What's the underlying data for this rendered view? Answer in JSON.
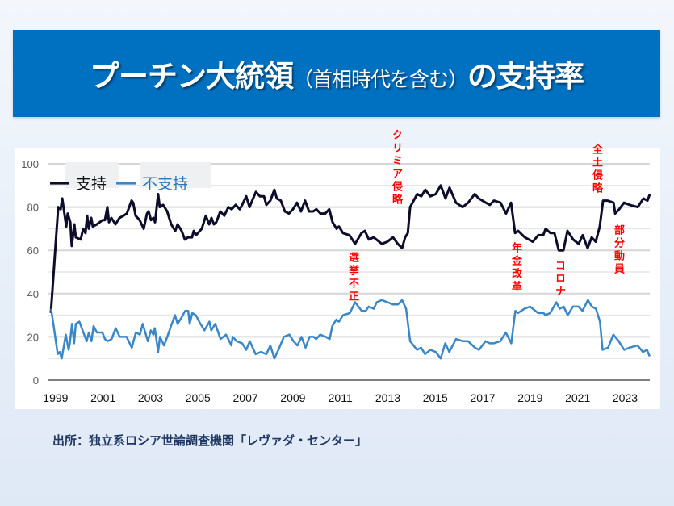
{
  "header": {
    "title_main": "プーチン大統領",
    "title_paren": "（首相時代を含む）",
    "title_end": "の支持率"
  },
  "source": "出所：独立系ロシア世論調査機関「レヴァダ・センター」",
  "chart_data": {
    "type": "line",
    "title": "プーチン大統領（首相時代を含む）の支持率",
    "xlabel": "",
    "ylabel": "",
    "xlim": [
      1999,
      2024.5
    ],
    "ylim": [
      0,
      100
    ],
    "yticks": [
      0,
      20,
      40,
      60,
      80,
      100
    ],
    "xticks": [
      "1999",
      "2001",
      "2003",
      "2005",
      "2007",
      "2009",
      "2011",
      "2013",
      "2015",
      "2017",
      "2019",
      "2021",
      "2023"
    ],
    "grid": true,
    "legend": "top-left",
    "series": [
      {
        "name": "支持",
        "color": "#0d0d2b",
        "points": [
          [
            1999.1,
            31
          ],
          [
            1999.24,
            53
          ],
          [
            1999.41,
            80
          ],
          [
            1999.51,
            79
          ],
          [
            1999.58,
            84
          ],
          [
            1999.75,
            71
          ],
          [
            1999.81,
            77
          ],
          [
            1999.92,
            73
          ],
          [
            1999.98,
            62
          ],
          [
            2000.09,
            72
          ],
          [
            2000.15,
            66
          ],
          [
            2000.36,
            65
          ],
          [
            2000.46,
            70
          ],
          [
            2000.56,
            68
          ],
          [
            2000.63,
            76
          ],
          [
            2000.7,
            70
          ],
          [
            2000.8,
            75
          ],
          [
            2000.87,
            71
          ],
          [
            2001.04,
            72
          ],
          [
            2001.28,
            74
          ],
          [
            2001.38,
            74
          ],
          [
            2001.48,
            80
          ],
          [
            2001.55,
            73
          ],
          [
            2001.65,
            75
          ],
          [
            2001.82,
            72
          ],
          [
            2001.99,
            75
          ],
          [
            2002.16,
            76
          ],
          [
            2002.3,
            77
          ],
          [
            2002.5,
            83
          ],
          [
            2002.57,
            82
          ],
          [
            2002.67,
            76
          ],
          [
            2002.84,
            74
          ],
          [
            2003.01,
            70
          ],
          [
            2003.15,
            77
          ],
          [
            2003.22,
            78
          ],
          [
            2003.32,
            74
          ],
          [
            2003.42,
            75
          ],
          [
            2003.49,
            73
          ],
          [
            2003.62,
            86
          ],
          [
            2003.69,
            80
          ],
          [
            2003.83,
            81
          ],
          [
            2004.0,
            78
          ],
          [
            2004.17,
            72
          ],
          [
            2004.34,
            69
          ],
          [
            2004.44,
            72
          ],
          [
            2004.61,
            69
          ],
          [
            2004.75,
            65
          ],
          [
            2004.88,
            66
          ],
          [
            2005.05,
            66
          ],
          [
            2005.12,
            69
          ],
          [
            2005.22,
            67
          ],
          [
            2005.46,
            70
          ],
          [
            2005.63,
            76
          ],
          [
            2005.77,
            72
          ],
          [
            2005.87,
            75
          ],
          [
            2005.97,
            72
          ],
          [
            2006.07,
            73
          ],
          [
            2006.24,
            78
          ],
          [
            2006.41,
            76
          ],
          [
            2006.58,
            80
          ],
          [
            2006.72,
            79
          ],
          [
            2006.89,
            81
          ],
          [
            2007.06,
            79
          ],
          [
            2007.16,
            81
          ],
          [
            2007.33,
            85
          ],
          [
            2007.47,
            80
          ],
          [
            2007.74,
            87
          ],
          [
            2007.91,
            85
          ],
          [
            2008.08,
            85
          ],
          [
            2008.18,
            81
          ],
          [
            2008.35,
            83
          ],
          [
            2008.52,
            88
          ],
          [
            2008.62,
            84
          ],
          [
            2008.79,
            83
          ],
          [
            2008.96,
            78
          ],
          [
            2009.13,
            77
          ],
          [
            2009.3,
            79
          ],
          [
            2009.47,
            82
          ],
          [
            2009.64,
            78
          ],
          [
            2009.81,
            83
          ],
          [
            2009.98,
            78
          ],
          [
            2010.15,
            78
          ],
          [
            2010.29,
            79
          ],
          [
            2010.46,
            77
          ],
          [
            2010.66,
            77
          ],
          [
            2010.83,
            79
          ],
          [
            2010.97,
            73
          ],
          [
            2011.14,
            70
          ],
          [
            2011.24,
            71
          ],
          [
            2011.41,
            68
          ],
          [
            2011.68,
            67
          ],
          [
            2011.92,
            63
          ],
          [
            2012.19,
            68
          ],
          [
            2012.33,
            69
          ],
          [
            2012.5,
            65
          ],
          [
            2012.7,
            66
          ],
          [
            2013.05,
            63
          ],
          [
            2013.28,
            64
          ],
          [
            2013.52,
            66
          ],
          [
            2013.72,
            63
          ],
          [
            2013.9,
            61
          ],
          [
            2014.03,
            66
          ],
          [
            2014.14,
            68
          ],
          [
            2014.24,
            80
          ],
          [
            2014.54,
            86
          ],
          [
            2014.71,
            85
          ],
          [
            2014.88,
            88
          ],
          [
            2015.09,
            85
          ],
          [
            2015.32,
            86
          ],
          [
            2015.53,
            90
          ],
          [
            2015.73,
            84
          ],
          [
            2015.9,
            89
          ],
          [
            2016.17,
            82
          ],
          [
            2016.45,
            80
          ],
          [
            2016.68,
            82
          ],
          [
            2016.96,
            86
          ],
          [
            2017.13,
            84
          ],
          [
            2017.43,
            82
          ],
          [
            2017.6,
            81
          ],
          [
            2017.77,
            83
          ],
          [
            2018.05,
            82
          ],
          [
            2018.28,
            77
          ],
          [
            2018.49,
            82
          ],
          [
            2018.66,
            68
          ],
          [
            2018.79,
            69
          ],
          [
            2019.07,
            66
          ],
          [
            2019.41,
            64
          ],
          [
            2019.64,
            67
          ],
          [
            2019.85,
            67
          ],
          [
            2019.95,
            70
          ],
          [
            2020.15,
            68
          ],
          [
            2020.32,
            68
          ],
          [
            2020.5,
            60
          ],
          [
            2020.7,
            60
          ],
          [
            2020.87,
            69
          ],
          [
            2021.11,
            65
          ],
          [
            2021.34,
            63
          ],
          [
            2021.51,
            67
          ],
          [
            2021.72,
            61
          ],
          [
            2021.89,
            66
          ],
          [
            2022.06,
            64
          ],
          [
            2022.23,
            71
          ],
          [
            2022.37,
            83
          ],
          [
            2022.57,
            83
          ],
          [
            2022.81,
            82
          ],
          [
            2022.88,
            77
          ],
          [
            2023.05,
            79
          ],
          [
            2023.25,
            82
          ],
          [
            2023.49,
            81
          ],
          [
            2023.83,
            80
          ],
          [
            2024.07,
            84
          ],
          [
            2024.24,
            83
          ],
          [
            2024.34,
            86
          ]
        ]
      },
      {
        "name": "不支持",
        "color": "#3a87c8",
        "points": [
          [
            1999.11,
            33
          ],
          [
            1999.22,
            25
          ],
          [
            1999.39,
            12
          ],
          [
            1999.47,
            13
          ],
          [
            1999.56,
            10
          ],
          [
            1999.73,
            21
          ],
          [
            1999.85,
            14
          ],
          [
            1999.9,
            17
          ],
          [
            1999.99,
            26
          ],
          [
            2000.08,
            17
          ],
          [
            2000.15,
            26
          ],
          [
            2000.3,
            27
          ],
          [
            2000.47,
            22
          ],
          [
            2000.61,
            18
          ],
          [
            2000.7,
            22
          ],
          [
            2000.81,
            18
          ],
          [
            2000.9,
            25
          ],
          [
            2001.04,
            22
          ],
          [
            2001.27,
            22
          ],
          [
            2001.38,
            19
          ],
          [
            2001.49,
            18
          ],
          [
            2001.66,
            19
          ],
          [
            2001.83,
            24
          ],
          [
            2002.0,
            20
          ],
          [
            2002.29,
            20
          ],
          [
            2002.51,
            15
          ],
          [
            2002.68,
            22
          ],
          [
            2002.85,
            21
          ],
          [
            2002.97,
            26
          ],
          [
            2003.19,
            18
          ],
          [
            2003.31,
            23
          ],
          [
            2003.42,
            21
          ],
          [
            2003.48,
            24
          ],
          [
            2003.62,
            13
          ],
          [
            2003.7,
            20
          ],
          [
            2003.87,
            16
          ],
          [
            2004.04,
            21
          ],
          [
            2004.16,
            25
          ],
          [
            2004.33,
            30
          ],
          [
            2004.44,
            26
          ],
          [
            2004.61,
            29
          ],
          [
            2004.76,
            32
          ],
          [
            2004.89,
            32
          ],
          [
            2004.95,
            26
          ],
          [
            2005.06,
            31
          ],
          [
            2005.21,
            30
          ],
          [
            2005.35,
            27
          ],
          [
            2005.57,
            23
          ],
          [
            2005.78,
            27
          ],
          [
            2005.86,
            23
          ],
          [
            2006.03,
            26
          ],
          [
            2006.25,
            19
          ],
          [
            2006.48,
            21
          ],
          [
            2006.71,
            16
          ],
          [
            2006.76,
            20
          ],
          [
            2006.93,
            18
          ],
          [
            2007.16,
            17
          ],
          [
            2007.33,
            14
          ],
          [
            2007.48,
            18
          ],
          [
            2007.73,
            12
          ],
          [
            2007.95,
            13
          ],
          [
            2008.18,
            12
          ],
          [
            2008.35,
            16
          ],
          [
            2008.52,
            10
          ],
          [
            2008.69,
            14
          ],
          [
            2008.92,
            20
          ],
          [
            2009.15,
            21
          ],
          [
            2009.32,
            18
          ],
          [
            2009.49,
            16
          ],
          [
            2009.66,
            20
          ],
          [
            2009.83,
            15
          ],
          [
            2010.0,
            20
          ],
          [
            2010.17,
            20
          ],
          [
            2010.28,
            19
          ],
          [
            2010.45,
            21
          ],
          [
            2010.68,
            20
          ],
          [
            2010.85,
            19
          ],
          [
            2010.96,
            25
          ],
          [
            2011.13,
            28
          ],
          [
            2011.24,
            27
          ],
          [
            2011.41,
            30
          ],
          [
            2011.7,
            31
          ],
          [
            2011.92,
            36
          ],
          [
            2012.2,
            32
          ],
          [
            2012.37,
            32
          ],
          [
            2012.49,
            34
          ],
          [
            2012.71,
            33
          ],
          [
            2012.83,
            36
          ],
          [
            2013.05,
            37
          ],
          [
            2013.28,
            36
          ],
          [
            2013.51,
            35
          ],
          [
            2013.73,
            35
          ],
          [
            2013.9,
            37
          ],
          [
            2014.07,
            33
          ],
          [
            2014.24,
            18
          ],
          [
            2014.53,
            14
          ],
          [
            2014.7,
            15
          ],
          [
            2014.87,
            12
          ],
          [
            2015.09,
            14
          ],
          [
            2015.32,
            13
          ],
          [
            2015.53,
            10
          ],
          [
            2015.72,
            17
          ],
          [
            2015.89,
            13
          ],
          [
            2016.17,
            19
          ],
          [
            2016.46,
            18
          ],
          [
            2016.68,
            18
          ],
          [
            2016.97,
            15
          ],
          [
            2017.14,
            14
          ],
          [
            2017.42,
            18
          ],
          [
            2017.59,
            17
          ],
          [
            2017.76,
            17
          ],
          [
            2018.04,
            18
          ],
          [
            2018.27,
            22
          ],
          [
            2018.5,
            17
          ],
          [
            2018.67,
            32
          ],
          [
            2018.78,
            31
          ],
          [
            2019.06,
            33
          ],
          [
            2019.29,
            34
          ],
          [
            2019.63,
            31
          ],
          [
            2019.86,
            31
          ],
          [
            2019.95,
            30
          ],
          [
            2020.14,
            31
          ],
          [
            2020.4,
            36
          ],
          [
            2020.54,
            33
          ],
          [
            2020.71,
            34
          ],
          [
            2020.88,
            30
          ],
          [
            2021.1,
            34
          ],
          [
            2021.33,
            34
          ],
          [
            2021.5,
            32
          ],
          [
            2021.73,
            37
          ],
          [
            2021.9,
            34
          ],
          [
            2022.07,
            33
          ],
          [
            2022.24,
            27
          ],
          [
            2022.35,
            14
          ],
          [
            2022.58,
            15
          ],
          [
            2022.8,
            21
          ],
          [
            2023.03,
            18
          ],
          [
            2023.26,
            14
          ],
          [
            2023.48,
            15
          ],
          [
            2023.82,
            16
          ],
          [
            2024.05,
            13
          ],
          [
            2024.22,
            14
          ],
          [
            2024.33,
            11
          ]
        ]
      }
    ],
    "annotations": [
      {
        "text": "選挙不正",
        "color": "#ff0000"
      },
      {
        "text": "クリミア侵略",
        "color": "#ff0000"
      },
      {
        "text": "年金改革",
        "color": "#ff0000"
      },
      {
        "text": "コロナ",
        "color": "#ff0000"
      },
      {
        "text": "全土侵略",
        "color": "#ff0000"
      },
      {
        "text": "部分動員",
        "color": "#ff0000"
      }
    ]
  }
}
